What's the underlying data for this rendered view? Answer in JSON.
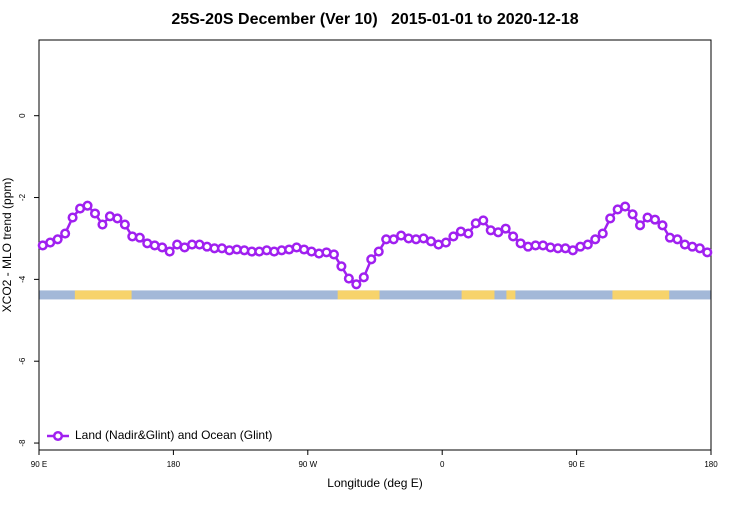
{
  "chart_data": {
    "type": "line",
    "title": "25S-20S December (Ver 10)   2015-01-01 to 2020-12-18",
    "x_label": "Longitude (deg E)",
    "y_label": "XCO2 - MLO trend (ppm)",
    "xlim": [
      90,
      540
    ],
    "xticks": [
      {
        "value": 90,
        "label": "90 E"
      },
      180,
      {
        "value": 270,
        "label": "90 W"
      },
      {
        "value": 360,
        "label": "0"
      },
      {
        "value": 450,
        "label": "90 E"
      },
      {
        "value": 540,
        "label": "180"
      }
    ],
    "ylim": [
      -8.17,
      1.85
    ],
    "yticks": [
      -8,
      -6,
      -4,
      -2,
      0
    ],
    "legend_position": "bottom-left",
    "land_mask": {
      "ylim": [
        -4.49,
        -4.27
      ],
      "ocean_color": "#a3b8d8",
      "land_color": "#f7d36b",
      "segments": [
        [
          114,
          152
        ],
        [
          290,
          318
        ],
        [
          373,
          395
        ],
        [
          403,
          409
        ],
        [
          474,
          512
        ]
      ]
    },
    "series": [
      {
        "name": "Land (Nadir&Glint) and Ocean (Glint)",
        "color": "#a020f0",
        "x": [
          92.5,
          97.5,
          102.5,
          107.5,
          112.5,
          117.5,
          122.5,
          127.5,
          132.5,
          137.5,
          142.5,
          147.5,
          152.5,
          157.5,
          162.5,
          167.5,
          172.5,
          177.5,
          182.5,
          187.5,
          192.5,
          197.5,
          202.5,
          207.5,
          212.5,
          217.5,
          222.5,
          227.5,
          232.5,
          237.5,
          242.5,
          247.5,
          252.5,
          257.5,
          262.5,
          267.5,
          272.5,
          277.5,
          282.5,
          287.5,
          292.5,
          297.5,
          302.5,
          307.5,
          312.5,
          317.5,
          322.5,
          327.5,
          332.5,
          337.5,
          342.5,
          347.5,
          352.5,
          357.5,
          362.5,
          367.5,
          372.5,
          377.5,
          382.5,
          387.5,
          392.5,
          397.5,
          402.5,
          407.5,
          412.5,
          417.5,
          422.5,
          427.5,
          432.5,
          437.5,
          442.5,
          447.5,
          452.5,
          457.5,
          462.5,
          467.5,
          472.5,
          477.5,
          482.5,
          487.5,
          492.5,
          497.5,
          502.5,
          507.5,
          512.5,
          517.5,
          522.5,
          527.5,
          532.5,
          537.5
        ],
        "values": [
          -3.17,
          -3.1,
          -3.02,
          -2.88,
          -2.49,
          -2.27,
          -2.2,
          -2.39,
          -2.66,
          -2.46,
          -2.51,
          -2.66,
          -2.95,
          -2.98,
          -3.12,
          -3.17,
          -3.22,
          -3.32,
          -3.15,
          -3.22,
          -3.15,
          -3.15,
          -3.2,
          -3.24,
          -3.24,
          -3.29,
          -3.27,
          -3.29,
          -3.32,
          -3.32,
          -3.29,
          -3.32,
          -3.29,
          -3.27,
          -3.22,
          -3.27,
          -3.32,
          -3.37,
          -3.34,
          -3.39,
          -3.68,
          -3.98,
          -4.12,
          -3.95,
          -3.51,
          -3.32,
          -3.02,
          -3.02,
          -2.93,
          -3.0,
          -3.02,
          -3.0,
          -3.07,
          -3.15,
          -3.1,
          -2.95,
          -2.83,
          -2.88,
          -2.63,
          -2.56,
          -2.8,
          -2.85,
          -2.76,
          -2.95,
          -3.12,
          -3.2,
          -3.17,
          -3.17,
          -3.22,
          -3.24,
          -3.24,
          -3.29,
          -3.2,
          -3.15,
          -3.02,
          -2.88,
          -2.51,
          -2.29,
          -2.22,
          -2.41,
          -2.68,
          -2.49,
          -2.54,
          -2.68,
          -2.98,
          -3.02,
          -3.15,
          -3.2,
          -3.24,
          -3.34
        ]
      }
    ]
  }
}
